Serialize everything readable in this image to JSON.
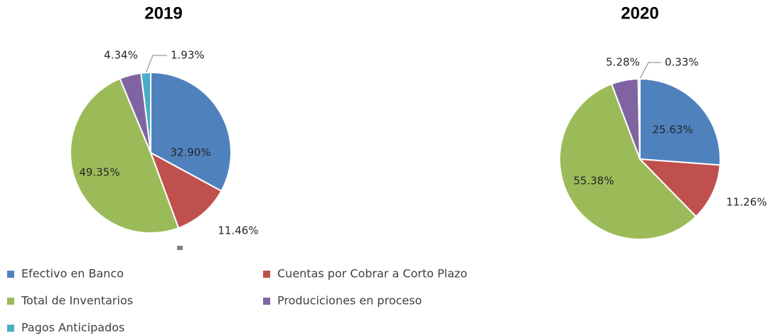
{
  "chart_data": [
    {
      "type": "pie",
      "title": "2019",
      "categories": [
        "Efectivo en Banco",
        "Cuentas por Cobrar a Corto Plazo",
        "Total de Inventarios",
        "Produciciones en proceso",
        "Pagos Anticipados"
      ],
      "values": [
        32.9,
        11.46,
        49.35,
        4.34,
        1.93
      ],
      "value_labels": [
        "32.90%",
        "11.46%",
        "49.35%",
        "4.34%",
        "1.93%"
      ],
      "colors": [
        "#4f81bd",
        "#c0504d",
        "#9bbb59",
        "#8064a2",
        "#4bacc6"
      ]
    },
    {
      "type": "pie",
      "title": "2020",
      "categories": [
        "Efectivo en Banco",
        "Cuentas por Cobrar a Corto Plazo",
        "Total de Inventarios",
        "Produciciones en proceso",
        "Pagos Anticipados"
      ],
      "values": [
        25.63,
        11.26,
        55.38,
        5.28,
        0.33
      ],
      "value_labels": [
        "25.63%",
        "11.26%",
        "55.38%",
        "5.28%",
        "0.33%"
      ],
      "colors": [
        "#4f81bd",
        "#c0504d",
        "#9bbb59",
        "#8064a2",
        "#4bacc6"
      ]
    }
  ]
}
